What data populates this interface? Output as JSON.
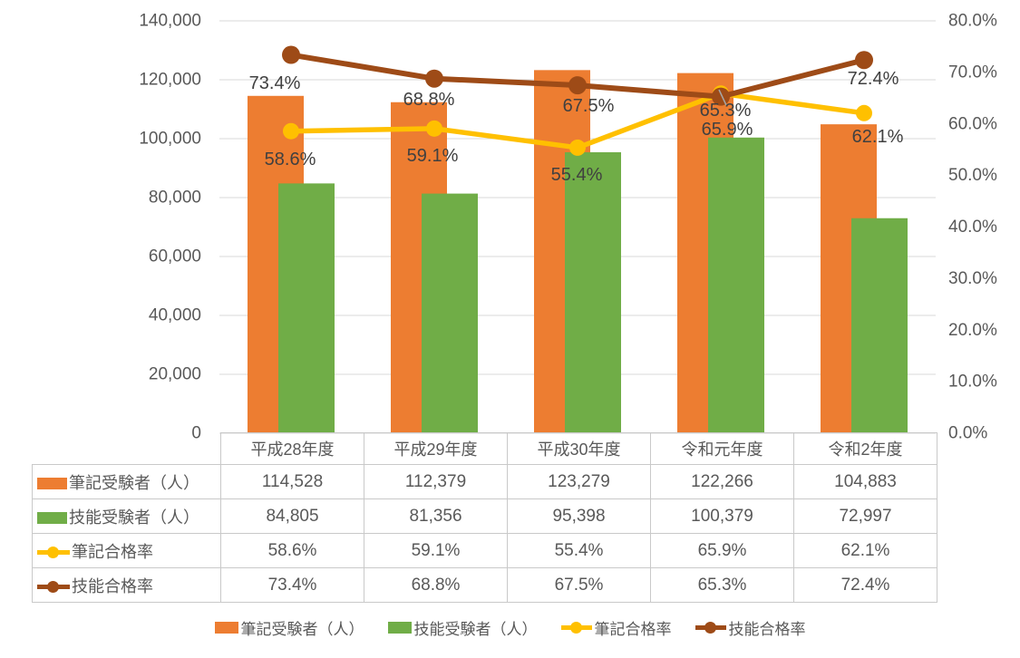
{
  "chart_data": {
    "type": "combo-bar-line",
    "title": "",
    "categories": [
      "平成28年度",
      "平成29年度",
      "平成30年度",
      "令和元年度",
      "令和2年度"
    ],
    "series": [
      {
        "name": "筆記受験者（人）",
        "type": "bar",
        "axis": "left",
        "color": "#ED7D31",
        "values": [
          114528,
          112379,
          123279,
          122266,
          104883
        ]
      },
      {
        "name": "技能受験者（人）",
        "type": "bar",
        "axis": "left",
        "color": "#70AD47",
        "values": [
          84805,
          81356,
          95398,
          100379,
          72997
        ]
      },
      {
        "name": "筆記合格率",
        "type": "line",
        "axis": "right",
        "color": "#FFC000",
        "values": [
          58.6,
          59.1,
          55.4,
          65.9,
          62.1
        ],
        "labels": [
          "58.6%",
          "59.1%",
          "55.4%",
          "65.9%",
          "62.1%"
        ]
      },
      {
        "name": "技能合格率",
        "type": "line",
        "axis": "right",
        "color": "#9E4B17",
        "values": [
          73.4,
          68.8,
          67.5,
          65.3,
          72.4
        ],
        "labels": [
          "73.4%",
          "68.8%",
          "67.5%",
          "65.3%",
          "72.4%"
        ]
      }
    ],
    "left_axis": {
      "min": 0,
      "max": 140000,
      "step": 20000,
      "ticks": [
        "140,000",
        "120,000",
        "100,000",
        "80,000",
        "60,000",
        "40,000",
        "20,000",
        "0"
      ]
    },
    "right_axis": {
      "min": 0,
      "max": 80,
      "step": 10,
      "ticks": [
        "80.0%",
        "70.0%",
        "60.0%",
        "50.0%",
        "40.0%",
        "30.0%",
        "20.0%",
        "10.0%",
        "0.0%"
      ]
    },
    "grid": true,
    "legend_position": "bottom",
    "colors": {
      "gridline": "#D9D9D9",
      "axis_text": "#595959",
      "data_label_text": "#404040",
      "leader_line": "#A6A6A6",
      "table_border": "#C9C9C9"
    }
  },
  "data_table": {
    "columns": [
      "平成28年度",
      "平成29年度",
      "平成30年度",
      "令和元年度",
      "令和2年度"
    ],
    "rows": [
      {
        "label": "筆記受験者（人）",
        "icon": "orange-bar-swatch",
        "values": [
          "114,528",
          "112,379",
          "123,279",
          "122,266",
          "104,883"
        ]
      },
      {
        "label": "技能受験者（人）",
        "icon": "green-bar-swatch",
        "values": [
          "84,805",
          "81,356",
          "95,398",
          "100,379",
          "72,997"
        ]
      },
      {
        "label": "筆記合格率",
        "icon": "yellow-line-marker",
        "values": [
          "58.6%",
          "59.1%",
          "55.4%",
          "65.9%",
          "62.1%"
        ]
      },
      {
        "label": "技能合格率",
        "icon": "brown-line-marker",
        "values": [
          "73.4%",
          "68.8%",
          "67.5%",
          "65.3%",
          "72.4%"
        ]
      }
    ]
  },
  "legend": {
    "items": [
      {
        "label": "筆記受験者（人）",
        "swatch": "bar",
        "color": "#ED7D31"
      },
      {
        "label": "技能受験者（人）",
        "swatch": "bar",
        "color": "#70AD47"
      },
      {
        "label": "筆記合格率",
        "swatch": "line",
        "color": "#FFC000"
      },
      {
        "label": "技能合格率",
        "swatch": "line",
        "color": "#9E4B17"
      }
    ]
  }
}
